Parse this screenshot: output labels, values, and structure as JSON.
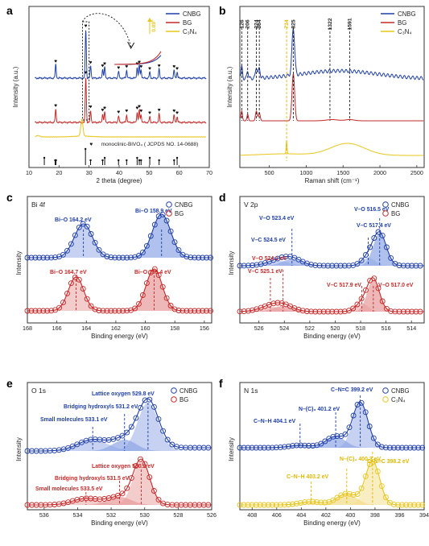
{
  "colors": {
    "blue": "#1f3fa8",
    "red": "#c62828",
    "yellow": "#e8c51a",
    "blue_fill": "#8fa6e6",
    "red_fill": "#e79a9a",
    "yellow_fill": "#f3dc86",
    "text": "#222222",
    "dash_blue": "#1f3fa8",
    "dash_red": "#c62828",
    "dash_yellow": "#e0b800"
  },
  "panels": {
    "a": {
      "letter": "a",
      "xlabel": "2 theta (degree)",
      "ylabel": "Intensity (a.u.)",
      "xticks": [
        "10",
        "20",
        "30",
        "40",
        "50",
        "60",
        "70"
      ],
      "legend": [
        "CNBG",
        "BG",
        "C₃N₄"
      ],
      "reference_label": "monoclinic-BiVO₄ ( JCPDS NO. 14-0688)",
      "inset_label": "0.09°"
    },
    "b": {
      "letter": "b",
      "xlabel": "Raman shift (cm⁻¹)",
      "ylabel": "Intensity (a.u.)",
      "xticks": [
        "500",
        "1000",
        "1500",
        "2000",
        "2500"
      ],
      "legend": [
        "CNBG",
        "BG",
        "C₃N₄"
      ],
      "peak_labels": [
        "126",
        "206",
        "324",
        "364",
        "734",
        "825",
        "1322",
        "1591"
      ]
    },
    "c": {
      "letter": "c",
      "title": "Bi 4f",
      "xlabel": "Binding energy (eV)",
      "ylabel": "Intensity",
      "xticks": [
        "168",
        "166",
        "164",
        "162",
        "160",
        "158",
        "156"
      ],
      "legend": [
        "CNBG",
        "BG"
      ],
      "annotations": [
        "Bi–O 164.2 eV",
        "Bi–O 158.9 eV",
        "Bi–O 164.7 eV",
        "Bi–O 159.4 eV"
      ]
    },
    "d": {
      "letter": "d",
      "title": "V 2p",
      "xlabel": "Binding energy (eV)",
      "ylabel": "Intensity",
      "xticks": [
        "526",
        "524",
        "522",
        "520",
        "518",
        "516",
        "514"
      ],
      "legend": [
        "CNBG",
        "BG"
      ],
      "annotations": [
        "V–O 523.4 eV",
        "V–C 524.5 eV",
        "V–O 516.5 eV",
        "V–C 517.4 eV",
        "V–O 524.1 eV",
        "V–C 525.1 eV",
        "V–C 517.9 eV",
        "V–O 517.0 eV"
      ]
    },
    "e": {
      "letter": "e",
      "title": "O 1s",
      "xlabel": "Binding energy (eV)",
      "ylabel": "Intensity",
      "xticks": [
        "536",
        "534",
        "532",
        "530",
        "528",
        "526"
      ],
      "legend": [
        "CNBG",
        "BG"
      ],
      "annotations": [
        "Lattice oxygen 529.8 eV",
        "Bridging hydroxyls 531.2 eV",
        "Small molecules 533.1 eV",
        "Lattice oxygen 530.2 eV",
        "Bridging hydroxyls 531.5 eV",
        "Small molecules 533.5 eV"
      ]
    },
    "f": {
      "letter": "f",
      "title": "N 1s",
      "xlabel": "Binding energy (eV)",
      "ylabel": "Intensity",
      "xticks": [
        "408",
        "406",
        "404",
        "402",
        "400",
        "398",
        "396",
        "394"
      ],
      "legend": [
        "CNBG",
        "C₃N₄"
      ],
      "annotations": [
        "C–N=C 399.2 eV",
        "N–(C)₃ 401.2 eV",
        "C–N–H 404.1 eV",
        "N–(C)₃ 400.3 eV",
        "C–N=C 398.2 eV",
        "C–N–H 403.2 eV"
      ]
    }
  },
  "chart_data": [
    {
      "panel": "a",
      "type": "line",
      "xlabel": "2 theta (degree)",
      "ylabel": "Intensity (a.u.)",
      "xlim": [
        10,
        70
      ],
      "series": [
        {
          "name": "CNBG",
          "peaks_x": [
            18.9,
            28.9,
            30.5,
            34.5,
            35.2,
            39.8,
            42.5,
            46.0,
            46.7,
            47.3,
            50.2,
            53.3,
            58.3,
            59.3
          ]
        },
        {
          "name": "BG",
          "peaks_x": [
            18.9,
            28.9,
            30.5,
            34.5,
            35.2,
            39.8,
            42.5,
            46.0,
            46.7,
            47.3,
            50.2,
            53.3,
            58.3,
            59.3
          ]
        },
        {
          "name": "C₃N₄",
          "peaks_x": [
            13.0,
            27.6
          ]
        }
      ]
    },
    {
      "panel": "b",
      "type": "line",
      "xlabel": "Raman shift (cm⁻¹)",
      "ylabel": "Intensity (a.u.)",
      "xlim": [
        100,
        2600
      ],
      "series": [
        {
          "name": "CNBG",
          "peaks_x": [
            126,
            206,
            324,
            364,
            825,
            1322,
            1591
          ]
        },
        {
          "name": "BG",
          "peaks_x": [
            126,
            206,
            324,
            364,
            825
          ]
        },
        {
          "name": "C₃N₄",
          "peaks_x": [
            734,
            1590
          ]
        }
      ]
    },
    {
      "panel": "c",
      "type": "line",
      "xlabel": "Binding energy (eV)",
      "ylabel": "Intensity",
      "xlim": [
        168,
        155.5
      ],
      "series": [
        {
          "name": "CNBG",
          "peaks_x": [
            164.2,
            158.9
          ]
        },
        {
          "name": "BG",
          "peaks_x": [
            164.7,
            159.4
          ]
        }
      ]
    },
    {
      "panel": "d",
      "type": "line",
      "xlabel": "Binding energy (eV)",
      "ylabel": "Intensity",
      "xlim": [
        527.5,
        513
      ],
      "series": [
        {
          "name": "CNBG",
          "peaks_x": [
            524.5,
            523.4,
            517.4,
            516.5
          ]
        },
        {
          "name": "BG",
          "peaks_x": [
            525.1,
            524.1,
            517.9,
            517.0
          ]
        }
      ]
    },
    {
      "panel": "e",
      "type": "line",
      "xlabel": "Binding energy (eV)",
      "ylabel": "Intensity",
      "xlim": [
        537,
        526
      ],
      "series": [
        {
          "name": "CNBG",
          "peaks_x": [
            533.1,
            531.2,
            529.8
          ]
        },
        {
          "name": "BG",
          "peaks_x": [
            533.5,
            531.5,
            530.2
          ]
        }
      ]
    },
    {
      "panel": "f",
      "type": "line",
      "xlabel": "Binding energy (eV)",
      "ylabel": "Intensity",
      "xlim": [
        409,
        394
      ],
      "series": [
        {
          "name": "CNBG",
          "peaks_x": [
            404.1,
            401.2,
            399.2
          ]
        },
        {
          "name": "C₃N₄",
          "peaks_x": [
            403.2,
            400.3,
            398.2
          ]
        }
      ]
    }
  ]
}
